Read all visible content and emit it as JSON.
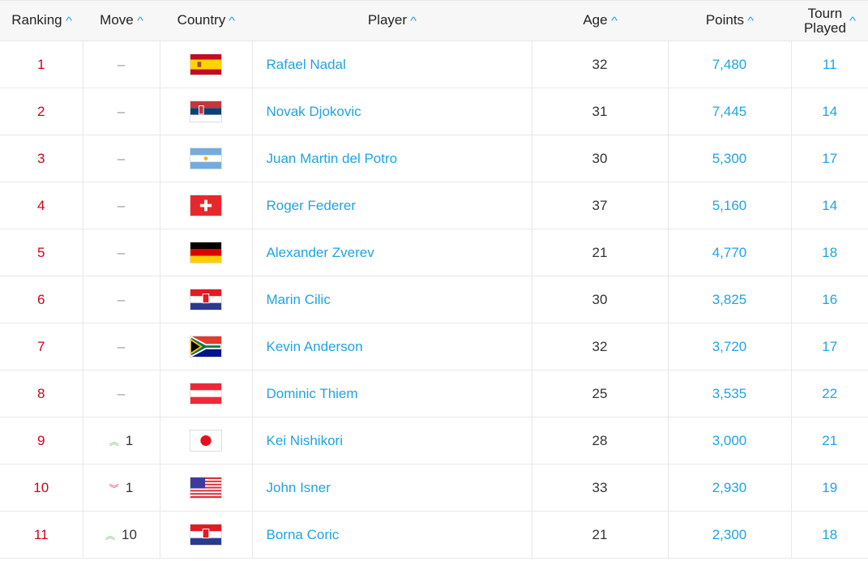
{
  "headers": {
    "ranking": "Ranking",
    "move": "Move",
    "country": "Country",
    "player": "Player",
    "age": "Age",
    "points": "Points",
    "tourn_line1": "Tourn",
    "tourn_line2": "Played"
  },
  "colors": {
    "rank": "#d0021b",
    "link": "#1fa3e6",
    "up": "#7cc576",
    "down": "#e0457b"
  },
  "rows": [
    {
      "rank": "1",
      "move": "–",
      "move_dir": "none",
      "country": "spain",
      "player": "Rafael Nadal",
      "age": "32",
      "points": "7,480",
      "played": "11"
    },
    {
      "rank": "2",
      "move": "–",
      "move_dir": "none",
      "country": "serbia",
      "player": "Novak Djokovic",
      "age": "31",
      "points": "7,445",
      "played": "14"
    },
    {
      "rank": "3",
      "move": "–",
      "move_dir": "none",
      "country": "argentina",
      "player": "Juan Martin del Potro",
      "age": "30",
      "points": "5,300",
      "played": "17"
    },
    {
      "rank": "4",
      "move": "–",
      "move_dir": "none",
      "country": "switzerland",
      "player": "Roger Federer",
      "age": "37",
      "points": "5,160",
      "played": "14"
    },
    {
      "rank": "5",
      "move": "–",
      "move_dir": "none",
      "country": "germany",
      "player": "Alexander Zverev",
      "age": "21",
      "points": "4,770",
      "played": "18"
    },
    {
      "rank": "6",
      "move": "–",
      "move_dir": "none",
      "country": "croatia",
      "player": "Marin Cilic",
      "age": "30",
      "points": "3,825",
      "played": "16"
    },
    {
      "rank": "7",
      "move": "–",
      "move_dir": "none",
      "country": "south-africa",
      "player": "Kevin Anderson",
      "age": "32",
      "points": "3,720",
      "played": "17"
    },
    {
      "rank": "8",
      "move": "–",
      "move_dir": "none",
      "country": "austria",
      "player": "Dominic Thiem",
      "age": "25",
      "points": "3,535",
      "played": "22"
    },
    {
      "rank": "9",
      "move": "1",
      "move_dir": "up",
      "country": "japan",
      "player": "Kei Nishikori",
      "age": "28",
      "points": "3,000",
      "played": "21"
    },
    {
      "rank": "10",
      "move": "1",
      "move_dir": "down",
      "country": "usa",
      "player": "John Isner",
      "age": "33",
      "points": "2,930",
      "played": "19"
    },
    {
      "rank": "11",
      "move": "10",
      "move_dir": "up",
      "country": "croatia",
      "player": "Borna Coric",
      "age": "21",
      "points": "2,300",
      "played": "18"
    }
  ]
}
